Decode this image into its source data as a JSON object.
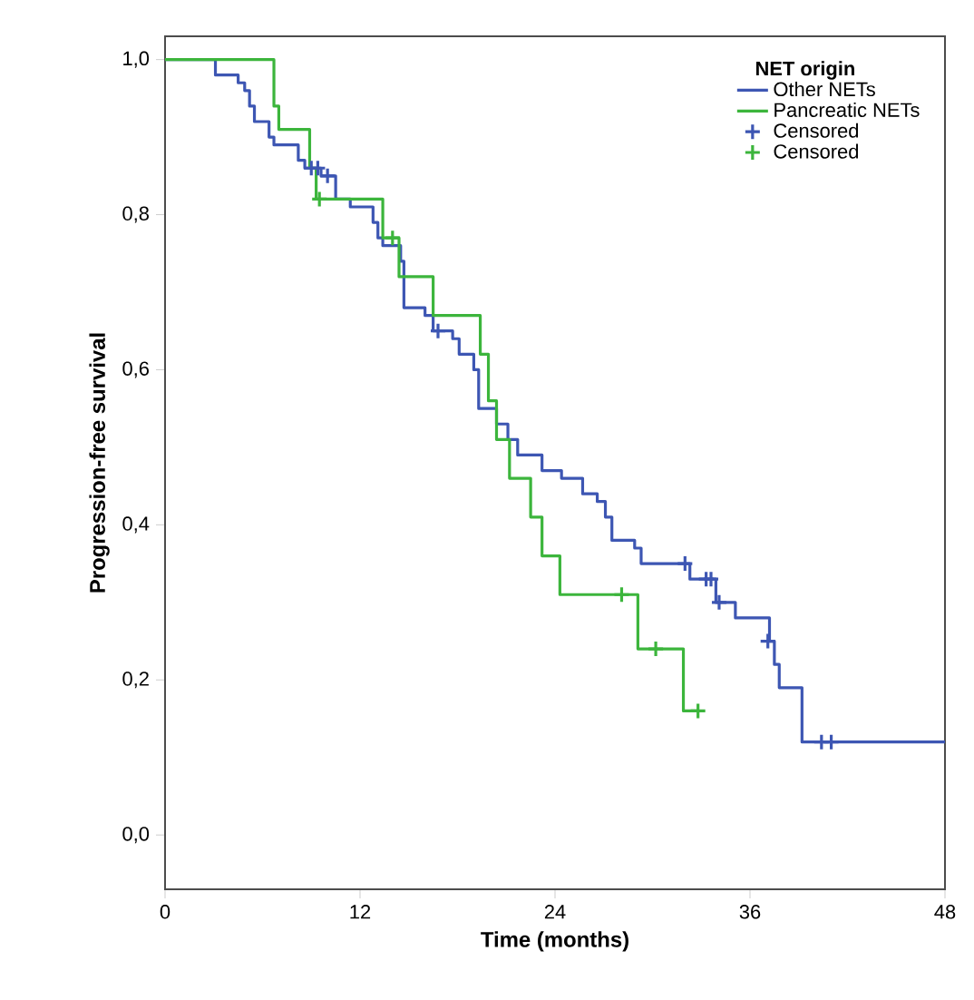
{
  "chart_data": {
    "type": "step",
    "xlabel": "Time (months)",
    "ylabel": "Progression-free survival",
    "legend_title": "NET origin",
    "xlim": [
      0,
      48
    ],
    "xticks": [
      0,
      12,
      24,
      36,
      48
    ],
    "ylim": [
      -0.07,
      1.03
    ],
    "yticks": [
      {
        "value": 0,
        "label": "0,0"
      },
      {
        "value": 0.2,
        "label": "0,2"
      },
      {
        "value": 0.4,
        "label": "0,4"
      },
      {
        "value": 0.6,
        "label": "0,6"
      },
      {
        "value": 0.8,
        "label": "0,8"
      },
      {
        "value": 1.0,
        "label": "1,0"
      }
    ],
    "grid": false,
    "legend": "top right",
    "series": [
      {
        "name": "Other NETs",
        "color": "#3d56b3",
        "x": [
          0,
          3.1,
          4.5,
          4.9,
          5.2,
          5.5,
          6.4,
          6.7,
          8.2,
          8.6,
          9.6,
          10.5,
          11.4,
          12.8,
          13.1,
          13.4,
          14.5,
          14.7,
          16.0,
          16.5,
          17.7,
          18.1,
          19.0,
          19.3,
          20.4,
          21.1,
          21.7,
          23.2,
          24.4,
          25.7,
          26.6,
          27.1,
          27.5,
          28.9,
          29.3,
          32.3,
          33.9,
          35.1,
          37.2,
          37.5,
          37.8,
          39.2,
          48
        ],
        "values": [
          1.0,
          0.98,
          0.97,
          0.96,
          0.94,
          0.92,
          0.9,
          0.89,
          0.87,
          0.86,
          0.85,
          0.82,
          0.81,
          0.79,
          0.77,
          0.76,
          0.74,
          0.68,
          0.67,
          0.65,
          0.64,
          0.62,
          0.6,
          0.55,
          0.53,
          0.51,
          0.49,
          0.47,
          0.46,
          0.44,
          0.43,
          0.41,
          0.38,
          0.37,
          0.35,
          0.33,
          0.3,
          0.28,
          0.25,
          0.22,
          0.19,
          0.12,
          0.12
        ]
      },
      {
        "name": "Pancreatic NETs",
        "color": "#3cb53c",
        "x": [
          0,
          6.7,
          7.0,
          8.9,
          9.3,
          13.4,
          14.4,
          16.5,
          19.4,
          19.9,
          20.4,
          21.2,
          22.5,
          23.2,
          24.3,
          29.1,
          31.9,
          32.8
        ],
        "values": [
          1.0,
          0.94,
          0.91,
          0.86,
          0.82,
          0.77,
          0.72,
          0.67,
          0.62,
          0.56,
          0.51,
          0.46,
          0.41,
          0.36,
          0.31,
          0.24,
          0.16,
          0.16
        ]
      },
      {
        "name": "Censored",
        "type": "scatter",
        "marker": "cross",
        "color": "#3d56b3",
        "x": [
          9.0,
          9.4,
          10.0,
          16.8,
          32.0,
          33.3,
          33.6,
          34.1,
          37.1,
          40.4,
          41.0
        ],
        "values": [
          0.86,
          0.86,
          0.85,
          0.65,
          0.35,
          0.33,
          0.33,
          0.3,
          0.25,
          0.12,
          0.12
        ]
      },
      {
        "name": "Censored",
        "type": "scatter",
        "marker": "cross",
        "color": "#3cb53c",
        "x": [
          9.5,
          14.0,
          28.1,
          30.2,
          32.8
        ],
        "values": [
          0.82,
          0.77,
          0.31,
          0.24,
          0.16
        ]
      }
    ]
  }
}
